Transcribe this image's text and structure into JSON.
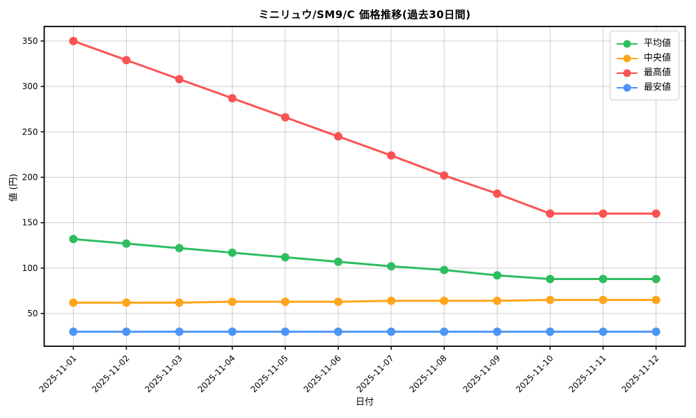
{
  "page": {
    "background": "#ffffff"
  },
  "chart_data": {
    "type": "line",
    "title": "ミニリュウ/SM9/C 価格推移(過去30日間)",
    "xlabel": "日付",
    "ylabel": "値 (円)",
    "categories": [
      "2025-11-01",
      "2025-11-02",
      "2025-11-03",
      "2025-11-04",
      "2025-11-05",
      "2025-11-06",
      "2025-11-07",
      "2025-11-08",
      "2025-11-09",
      "2025-11-10",
      "2025-11-11",
      "2025-11-12"
    ],
    "series": [
      {
        "name": "平均値",
        "color": "#2ebd60",
        "values": [
          132,
          127,
          122,
          117,
          112,
          107,
          102,
          98,
          92,
          88,
          88,
          88
        ]
      },
      {
        "name": "中央値",
        "color": "#ffa51c",
        "values": [
          62,
          62,
          62,
          63,
          63,
          63,
          64,
          64,
          64,
          65,
          65,
          65
        ]
      },
      {
        "name": "最高値",
        "color": "#fa5252",
        "values": [
          350,
          329,
          308,
          287,
          266,
          245,
          224,
          202,
          182,
          160,
          160,
          160
        ]
      },
      {
        "name": "最安値",
        "color": "#4d94f7",
        "values": [
          30,
          30,
          30,
          30,
          30,
          30,
          30,
          30,
          30,
          30,
          30,
          30
        ]
      }
    ],
    "yticks": [
      50,
      100,
      150,
      200,
      250,
      300,
      350
    ],
    "ylim": [
      14,
      366
    ],
    "grid": true,
    "legend_position": "upper right"
  },
  "style": {
    "grid_color": "#cccccc",
    "axis_color": "#000000",
    "tick_text_color": "#000000",
    "legend_border_color": "#cccccc",
    "marker_radius": 6,
    "line_width": 3
  }
}
